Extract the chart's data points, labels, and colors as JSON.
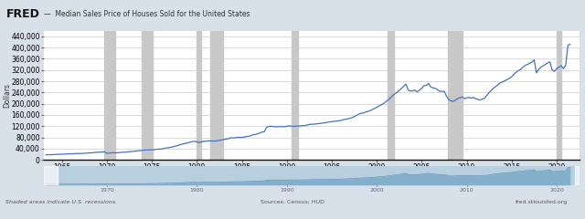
{
  "title": "Median Sales Price of Houses Sold for the United States",
  "ylabel": "Dollars",
  "source_text": "Sources: Census; HUD",
  "fred_text": "fred.stlouisfed.org",
  "shaded_text": "Shaded areas indicate U.S. recessions.",
  "line_color": "#4472C4",
  "header_bg_color": "#d8e0ea",
  "plot_bg_color": "#e8edf3",
  "chart_bg_color": "#ffffff",
  "recession_color": "#c8c8c8",
  "mini_bg_color": "#b8cfe0",
  "mini_fill_color": "#7aaac8",
  "xlim": [
    1963.0,
    2022.5
  ],
  "ylim": [
    0,
    460000
  ],
  "yticks": [
    0,
    40000,
    80000,
    120000,
    160000,
    200000,
    240000,
    280000,
    320000,
    360000,
    400000,
    440000
  ],
  "xticks": [
    1965,
    1970,
    1975,
    1980,
    1985,
    1990,
    1995,
    2000,
    2005,
    2010,
    2015,
    2020
  ],
  "recessions": [
    [
      1969.75,
      1970.917
    ],
    [
      1973.917,
      1975.083
    ],
    [
      1980.0,
      1980.5
    ],
    [
      1981.5,
      1982.917
    ],
    [
      1990.5,
      1991.25
    ],
    [
      2001.25,
      2001.917
    ],
    [
      2007.917,
      2009.5
    ],
    [
      2020.0,
      2020.5
    ]
  ],
  "data_years": [
    1963.25,
    1963.5,
    1963.75,
    1964.0,
    1964.25,
    1964.5,
    1964.75,
    1965.0,
    1965.25,
    1965.5,
    1965.75,
    1966.0,
    1966.25,
    1966.5,
    1966.75,
    1967.0,
    1967.25,
    1967.5,
    1967.75,
    1968.0,
    1968.25,
    1968.5,
    1968.75,
    1969.0,
    1969.25,
    1969.5,
    1969.75,
    1970.0,
    1970.25,
    1970.5,
    1970.75,
    1971.0,
    1971.25,
    1971.5,
    1971.75,
    1972.0,
    1972.25,
    1972.5,
    1972.75,
    1973.0,
    1973.25,
    1973.5,
    1973.75,
    1974.0,
    1974.25,
    1974.5,
    1974.75,
    1975.0,
    1975.25,
    1975.5,
    1975.75,
    1976.0,
    1976.25,
    1976.5,
    1976.75,
    1977.0,
    1977.25,
    1977.5,
    1977.75,
    1978.0,
    1978.25,
    1978.5,
    1978.75,
    1979.0,
    1979.25,
    1979.5,
    1979.75,
    1980.0,
    1980.25,
    1980.5,
    1980.75,
    1981.0,
    1981.25,
    1981.5,
    1981.75,
    1982.0,
    1982.25,
    1982.5,
    1982.75,
    1983.0,
    1983.25,
    1983.5,
    1983.75,
    1984.0,
    1984.25,
    1984.5,
    1984.75,
    1985.0,
    1985.25,
    1985.5,
    1985.75,
    1986.0,
    1986.25,
    1986.5,
    1986.75,
    1987.0,
    1987.25,
    1987.5,
    1987.75,
    1988.0,
    1988.25,
    1988.5,
    1988.75,
    1989.0,
    1989.25,
    1989.5,
    1989.75,
    1990.0,
    1990.25,
    1990.5,
    1990.75,
    1991.0,
    1991.25,
    1991.5,
    1991.75,
    1992.0,
    1992.25,
    1992.5,
    1992.75,
    1993.0,
    1993.25,
    1993.5,
    1993.75,
    1994.0,
    1994.25,
    1994.5,
    1994.75,
    1995.0,
    1995.25,
    1995.5,
    1995.75,
    1996.0,
    1996.25,
    1996.5,
    1996.75,
    1997.0,
    1997.25,
    1997.5,
    1997.75,
    1998.0,
    1998.25,
    1998.5,
    1998.75,
    1999.0,
    1999.25,
    1999.5,
    1999.75,
    2000.0,
    2000.25,
    2000.5,
    2000.75,
    2001.0,
    2001.25,
    2001.5,
    2001.75,
    2002.0,
    2002.25,
    2002.5,
    2002.75,
    2003.0,
    2003.25,
    2003.5,
    2003.75,
    2004.0,
    2004.25,
    2004.5,
    2004.75,
    2005.0,
    2005.25,
    2005.5,
    2005.75,
    2006.0,
    2006.25,
    2006.5,
    2006.75,
    2007.0,
    2007.25,
    2007.5,
    2007.75,
    2008.0,
    2008.25,
    2008.5,
    2008.75,
    2009.0,
    2009.25,
    2009.5,
    2009.75,
    2010.0,
    2010.25,
    2010.5,
    2010.75,
    2011.0,
    2011.25,
    2011.5,
    2011.75,
    2012.0,
    2012.25,
    2012.5,
    2012.75,
    2013.0,
    2013.25,
    2013.5,
    2013.75,
    2014.0,
    2014.25,
    2014.5,
    2014.75,
    2015.0,
    2015.25,
    2015.5,
    2015.75,
    2016.0,
    2016.25,
    2016.5,
    2016.75,
    2017.0,
    2017.25,
    2017.5,
    2017.75,
    2018.0,
    2018.25,
    2018.5,
    2018.75,
    2019.0,
    2019.25,
    2019.5,
    2019.75,
    2020.0,
    2020.25,
    2020.5,
    2020.75,
    2021.0,
    2021.25,
    2021.5
  ],
  "data_values": [
    18000,
    18200,
    18500,
    18700,
    19300,
    20000,
    20200,
    20000,
    20500,
    21000,
    21500,
    21500,
    22000,
    22500,
    22800,
    22500,
    23000,
    23500,
    24000,
    24500,
    25000,
    26000,
    26800,
    27000,
    27500,
    28000,
    28500,
    23500,
    24000,
    25000,
    25500,
    25000,
    25500,
    26500,
    27000,
    27500,
    28000,
    29000,
    30000,
    30500,
    31500,
    32500,
    33000,
    34000,
    35000,
    35500,
    36000,
    35500,
    36500,
    37500,
    38500,
    38500,
    40000,
    42000,
    43000,
    44000,
    46000,
    48000,
    50000,
    52000,
    55000,
    57000,
    59000,
    61000,
    63000,
    65000,
    66000,
    64000,
    62000,
    64000,
    66000,
    66000,
    68000,
    67500,
    67000,
    67000,
    68000,
    69500,
    71000,
    72500,
    74000,
    75000,
    79000,
    78000,
    79000,
    80000,
    80000,
    80000,
    81000,
    83000,
    84000,
    86000,
    90000,
    90000,
    93000,
    96000,
    99000,
    100000,
    116000,
    119000,
    120000,
    118000,
    118000,
    118000,
    119000,
    118000,
    118000,
    120000,
    121000,
    120000,
    119000,
    120000,
    120000,
    121000,
    122000,
    122000,
    124000,
    126000,
    127000,
    127000,
    128000,
    129000,
    130000,
    131000,
    132000,
    134000,
    135000,
    136000,
    137000,
    138000,
    139000,
    140000,
    143000,
    144000,
    146000,
    148000,
    150000,
    154000,
    158000,
    163000,
    166000,
    167000,
    170000,
    172000,
    175000,
    179000,
    183000,
    187000,
    192000,
    196000,
    200000,
    207000,
    213000,
    220000,
    228000,
    235000,
    240000,
    247000,
    255000,
    262000,
    270000,
    248000,
    245000,
    246000,
    248000,
    242000,
    248000,
    255000,
    264000,
    265000,
    272000,
    260000,
    256000,
    255000,
    250000,
    244000,
    244000,
    244000,
    227000,
    215000,
    210000,
    208000,
    213000,
    218000,
    222000,
    224000,
    218000,
    221000,
    222000,
    220000,
    222000,
    218000,
    215000,
    213000,
    217000,
    220000,
    230000,
    240000,
    248000,
    256000,
    262000,
    268000,
    275000,
    278000,
    282000,
    286000,
    290000,
    296000,
    305000,
    312000,
    318000,
    322000,
    330000,
    336000,
    340000,
    344000,
    348000,
    356000,
    310000,
    322000,
    330000,
    335000,
    340000,
    345000,
    349000,
    320000,
    315000,
    325000,
    330000,
    335000,
    325000,
    336000,
    408000,
    412000
  ]
}
